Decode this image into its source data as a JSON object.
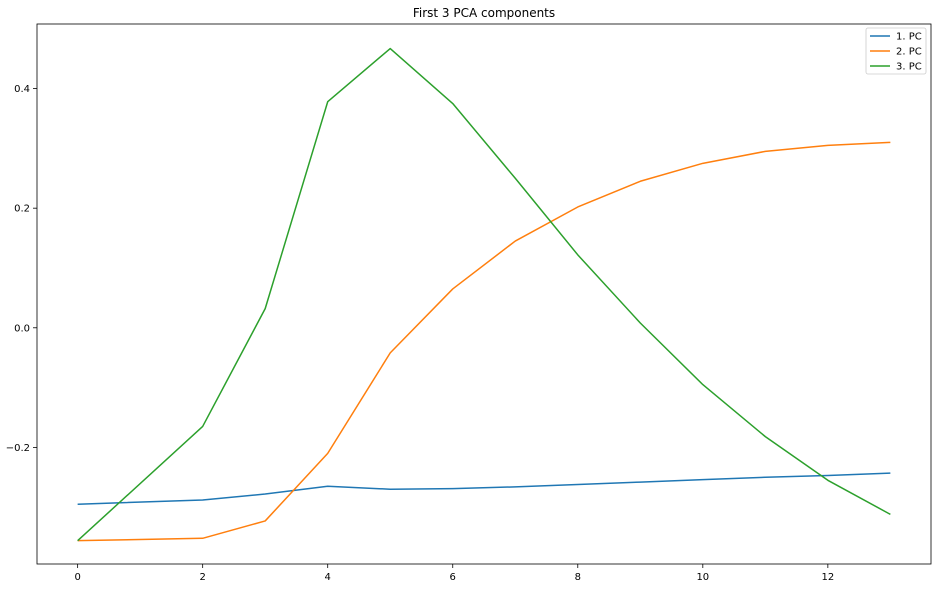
{
  "chart_data": {
    "type": "line",
    "title": "First 3 PCA components",
    "xlabel": "",
    "ylabel": "",
    "xlim": [
      -0.65,
      13.65
    ],
    "ylim": [
      -0.395,
      0.508
    ],
    "xticks": [
      0,
      2,
      4,
      6,
      8,
      10,
      12
    ],
    "xtick_labels": [
      "0",
      "2",
      "4",
      "6",
      "8",
      "10",
      "12"
    ],
    "yticks": [
      -0.2,
      0.0,
      0.2,
      0.4
    ],
    "ytick_labels": [
      "−0.2",
      "0.0",
      "0.2",
      "0.4"
    ],
    "grid": false,
    "legend": "top-right",
    "x": [
      0,
      2,
      3,
      4,
      5,
      6,
      7,
      8,
      9,
      10,
      11,
      12,
      13
    ],
    "series": [
      {
        "name": "1. PC",
        "color": "#1f77b4",
        "values": [
          -0.295,
          -0.288,
          -0.278,
          -0.265,
          -0.27,
          -0.269,
          -0.266,
          -0.262,
          -0.258,
          -0.254,
          -0.25,
          -0.247,
          -0.243
        ]
      },
      {
        "name": "2. PC",
        "color": "#ff7f0e",
        "values": [
          -0.356,
          -0.352,
          -0.323,
          -0.21,
          -0.042,
          0.065,
          0.145,
          0.202,
          0.245,
          0.275,
          0.295,
          0.305,
          0.31
        ]
      },
      {
        "name": "3. PC",
        "color": "#2ca02c",
        "values": [
          -0.356,
          -0.165,
          0.032,
          0.378,
          0.467,
          0.375,
          0.25,
          0.122,
          0.008,
          -0.095,
          -0.182,
          -0.255,
          -0.312
        ]
      }
    ]
  }
}
